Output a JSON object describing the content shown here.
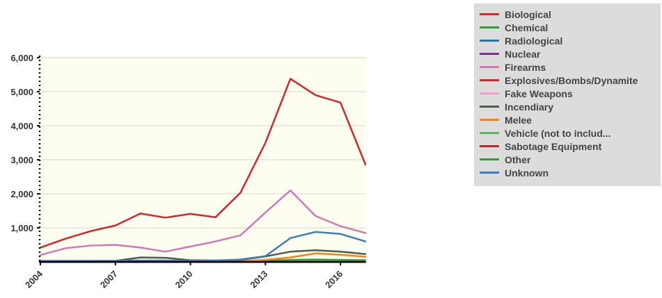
{
  "chart_data": {
    "type": "line",
    "title": "",
    "xlabel": "",
    "ylabel": "",
    "x": [
      2004,
      2005,
      2006,
      2007,
      2008,
      2009,
      2010,
      2011,
      2012,
      2013,
      2014,
      2015,
      2016,
      2017
    ],
    "x_tick_labels": [
      "2004",
      "2007",
      "2010",
      "2013",
      "2016"
    ],
    "x_ticks": [
      2004,
      2007,
      2010,
      2013,
      2016
    ],
    "y_tick_labels": [
      "1,000",
      "2,000",
      "3,000",
      "4,000",
      "5,000",
      "6,000"
    ],
    "y_ticks": [
      1000,
      2000,
      3000,
      4000,
      5000,
      6000
    ],
    "xlim": [
      2004,
      2017
    ],
    "ylim": [
      0,
      6000
    ],
    "grid": true,
    "legend_position": "right",
    "plot_background": "#fdfdf0",
    "series": [
      {
        "name": "Biological",
        "color": "#d62728",
        "values": [
          0,
          0,
          0,
          0,
          0,
          0,
          0,
          0,
          0,
          0,
          0,
          0,
          0,
          0
        ]
      },
      {
        "name": "Chemical",
        "color": "#2ca02c",
        "values": [
          5,
          5,
          5,
          5,
          5,
          5,
          5,
          5,
          5,
          5,
          5,
          5,
          5,
          5
        ]
      },
      {
        "name": "Radiological",
        "color": "#1f77b4",
        "values": [
          0,
          0,
          0,
          0,
          0,
          0,
          0,
          0,
          0,
          0,
          0,
          0,
          0,
          0
        ]
      },
      {
        "name": "Nuclear",
        "color": "#7b3294",
        "values": [
          0,
          0,
          0,
          0,
          0,
          0,
          0,
          0,
          0,
          0,
          0,
          0,
          0,
          0
        ]
      },
      {
        "name": "Firearms",
        "color": "#d17ab4",
        "values": [
          200,
          400,
          480,
          500,
          420,
          300,
          450,
          600,
          780,
          1450,
          2100,
          1350,
          1050,
          850
        ]
      },
      {
        "name": "Explosives/Bombs/Dynamite",
        "color": "#d62728",
        "values": [
          420,
          680,
          900,
          1070,
          1420,
          1300,
          1410,
          1310,
          2030,
          3500,
          5380,
          4900,
          4680,
          2860
        ]
      },
      {
        "name": "Fake Weapons",
        "color": "#f29ccf",
        "values": [
          10,
          10,
          10,
          10,
          10,
          10,
          10,
          10,
          10,
          10,
          10,
          10,
          10,
          10
        ]
      },
      {
        "name": "Incendiary",
        "color": "#4d5b4d",
        "values": [
          20,
          25,
          25,
          30,
          130,
          120,
          50,
          40,
          60,
          160,
          300,
          340,
          300,
          230
        ]
      },
      {
        "name": "Melee",
        "color": "#ff7f0e",
        "values": [
          10,
          10,
          10,
          10,
          15,
          15,
          10,
          10,
          20,
          60,
          130,
          250,
          210,
          150
        ]
      },
      {
        "name": "Vehicle (not to includ...",
        "color": "#5cb85c",
        "values": [
          5,
          5,
          5,
          5,
          5,
          5,
          5,
          5,
          5,
          10,
          20,
          30,
          25,
          20
        ]
      },
      {
        "name": "Sabotage Equipment",
        "color": "#c0272d",
        "values": [
          0,
          0,
          0,
          0,
          0,
          0,
          0,
          0,
          0,
          0,
          0,
          0,
          0,
          0
        ]
      },
      {
        "name": "Other",
        "color": "#3a9a3a",
        "values": [
          10,
          10,
          10,
          10,
          15,
          15,
          10,
          10,
          20,
          30,
          60,
          70,
          60,
          50
        ]
      },
      {
        "name": "Unknown",
        "color": "#3a7ebf",
        "values": [
          30,
          30,
          30,
          30,
          40,
          40,
          30,
          40,
          70,
          170,
          700,
          880,
          820,
          600
        ]
      }
    ]
  }
}
